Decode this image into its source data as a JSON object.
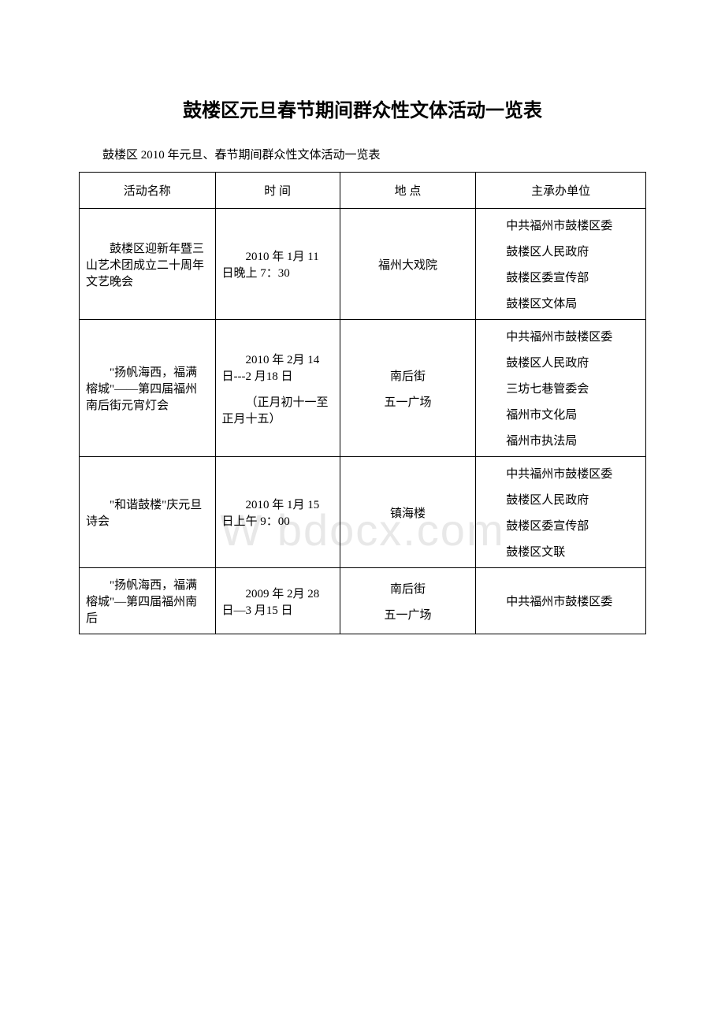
{
  "page_title": "鼓楼区元旦春节期间群众性文体活动一览表",
  "subtitle": "鼓楼区 2010 年元旦、春节期间群众性文体活动一览表",
  "watermark": "W    bdocx.com",
  "headers": {
    "name": "活动名称",
    "time": "时 间",
    "place": "地 点",
    "organizer": "主承办单位"
  },
  "rows": [
    {
      "name": "鼓楼区迎新年暨三山艺术团成立二十周年文艺晚会",
      "time": [
        "2010 年 1月 11 日晚上 7：30"
      ],
      "place": [
        "福州大戏院"
      ],
      "organizer": [
        "中共福州市鼓楼区委",
        "鼓楼区人民政府",
        "鼓楼区委宣传部",
        "鼓楼区文体局"
      ]
    },
    {
      "name": "\"扬帆海西，福满榕城\"——第四届福州南后街元宵灯会",
      "time": [
        "2010 年 2月 14 日---2 月18 日",
        "（正月初十一至正月十五）"
      ],
      "place": [
        "南后街",
        "五一广场"
      ],
      "organizer": [
        "中共福州市鼓楼区委",
        "鼓楼区人民政府",
        "三坊七巷管委会",
        "福州市文化局",
        "福州市执法局"
      ]
    },
    {
      "name": "\"和谐鼓楼\"庆元旦诗会",
      "time": [
        "2010 年 1月 15 日上午 9：00"
      ],
      "place": [
        "镇海楼"
      ],
      "organizer": [
        "中共福州市鼓楼区委",
        "鼓楼区人民政府",
        "鼓楼区委宣传部",
        "鼓楼区文联"
      ]
    },
    {
      "name": "\"扬帆海西，福满榕城\"—第四届福州南后",
      "time": [
        "2009 年 2月 28 日—3 月15 日"
      ],
      "place": [
        "南后街",
        "五一广场"
      ],
      "organizer": [
        "中共福州市鼓楼区委"
      ]
    }
  ],
  "style": {
    "background_color": "#ffffff",
    "text_color": "#000000",
    "border_color": "#000000",
    "watermark_color": "#e8e8e8",
    "title_fontsize": 24,
    "body_fontsize": 15
  }
}
